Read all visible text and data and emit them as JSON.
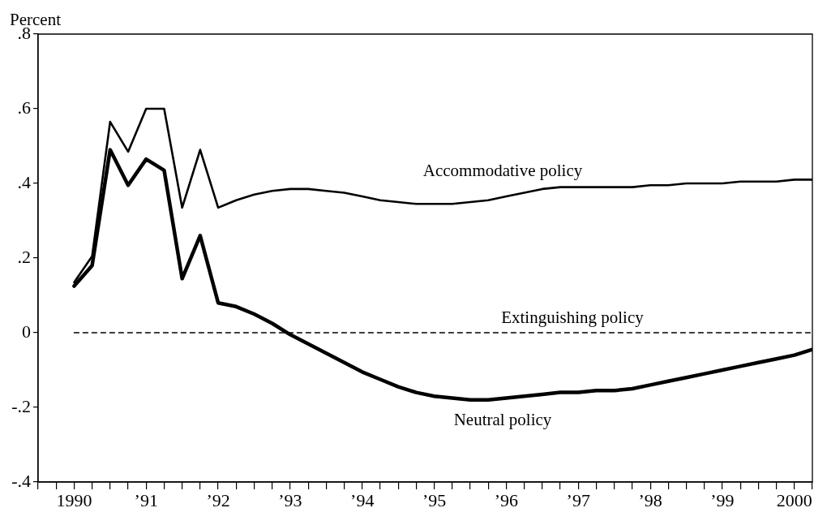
{
  "chart_data": {
    "type": "line",
    "ylabel": "Percent",
    "x": [
      1990,
      1990.25,
      1990.5,
      1990.75,
      1991,
      1991.25,
      1991.5,
      1991.75,
      1992,
      1992.25,
      1992.5,
      1992.75,
      1993,
      1993.25,
      1993.5,
      1993.75,
      1994,
      1994.25,
      1994.5,
      1994.75,
      1995,
      1995.25,
      1995.5,
      1995.75,
      1996,
      1996.25,
      1996.5,
      1996.75,
      1997,
      1997.25,
      1997.5,
      1997.75,
      1998,
      1998.25,
      1998.5,
      1998.75,
      1999,
      1999.25,
      1999.5,
      1999.75,
      2000,
      2000.25
    ],
    "series": [
      {
        "name": "Accommodative policy",
        "color": "#000000",
        "values": [
          0.135,
          0.205,
          0.565,
          0.485,
          0.6,
          0.6,
          0.335,
          0.49,
          0.335,
          0.355,
          0.37,
          0.38,
          0.385,
          0.385,
          0.38,
          0.375,
          0.365,
          0.355,
          0.35,
          0.345,
          0.345,
          0.345,
          0.35,
          0.355,
          0.365,
          0.375,
          0.385,
          0.39,
          0.39,
          0.39,
          0.39,
          0.39,
          0.395,
          0.395,
          0.4,
          0.4,
          0.4,
          0.405,
          0.405,
          0.405,
          0.41,
          0.41
        ]
      },
      {
        "name": "Extinguishing policy",
        "color": "#000000",
        "line_style": "dashed",
        "x": [
          1990,
          2000.25
        ],
        "values": [
          0,
          0
        ]
      },
      {
        "name": "Neutral policy",
        "color": "#000000",
        "values": [
          0.125,
          0.18,
          0.49,
          0.395,
          0.465,
          0.435,
          0.145,
          0.26,
          0.08,
          0.07,
          0.05,
          0.025,
          -0.005,
          -0.03,
          -0.055,
          -0.08,
          -0.105,
          -0.125,
          -0.145,
          -0.16,
          -0.17,
          -0.175,
          -0.18,
          -0.18,
          -0.175,
          -0.17,
          -0.165,
          -0.16,
          -0.16,
          -0.155,
          -0.155,
          -0.15,
          -0.14,
          -0.13,
          -0.12,
          -0.11,
          -0.1,
          -0.09,
          -0.08,
          -0.07,
          -0.06,
          -0.045
        ]
      }
    ],
    "xlim": [
      1989.5,
      2000.25
    ],
    "xticks": [
      {
        "value": 1989.5,
        "label": null
      },
      {
        "value": 1989.75,
        "label": null
      },
      {
        "value": 1990,
        "label": "1990"
      },
      {
        "value": 1990.25,
        "label": null
      },
      {
        "value": 1990.5,
        "label": null
      },
      {
        "value": 1990.75,
        "label": null
      },
      {
        "value": 1991,
        "label": "’91"
      },
      {
        "value": 1991.25,
        "label": null
      },
      {
        "value": 1991.5,
        "label": null
      },
      {
        "value": 1991.75,
        "label": null
      },
      {
        "value": 1992,
        "label": "’92"
      },
      {
        "value": 1992.25,
        "label": null
      },
      {
        "value": 1992.5,
        "label": null
      },
      {
        "value": 1992.75,
        "label": null
      },
      {
        "value": 1993,
        "label": "’93"
      },
      {
        "value": 1993.25,
        "label": null
      },
      {
        "value": 1993.5,
        "label": null
      },
      {
        "value": 1993.75,
        "label": null
      },
      {
        "value": 1994,
        "label": "’94"
      },
      {
        "value": 1994.25,
        "label": null
      },
      {
        "value": 1994.5,
        "label": null
      },
      {
        "value": 1994.75,
        "label": null
      },
      {
        "value": 1995,
        "label": "’95"
      },
      {
        "value": 1995.25,
        "label": null
      },
      {
        "value": 1995.5,
        "label": null
      },
      {
        "value": 1995.75,
        "label": null
      },
      {
        "value": 1996,
        "label": "’96"
      },
      {
        "value": 1996.25,
        "label": null
      },
      {
        "value": 1996.5,
        "label": null
      },
      {
        "value": 1996.75,
        "label": null
      },
      {
        "value": 1997,
        "label": "’97"
      },
      {
        "value": 1997.25,
        "label": null
      },
      {
        "value": 1997.5,
        "label": null
      },
      {
        "value": 1997.75,
        "label": null
      },
      {
        "value": 1998,
        "label": "’98"
      },
      {
        "value": 1998.25,
        "label": null
      },
      {
        "value": 1998.5,
        "label": null
      },
      {
        "value": 1998.75,
        "label": null
      },
      {
        "value": 1999,
        "label": "’99"
      },
      {
        "value": 1999.25,
        "label": null
      },
      {
        "value": 1999.5,
        "label": null
      },
      {
        "value": 1999.75,
        "label": null
      },
      {
        "value": 2000,
        "label": "2000"
      },
      {
        "value": 2000.25,
        "label": null
      }
    ],
    "ylim": [
      -0.4,
      0.8
    ],
    "yticks": [
      {
        "value": 0.8,
        "label": ".8"
      },
      {
        "value": 0.6,
        "label": ".6"
      },
      {
        "value": 0.4,
        "label": ".4"
      },
      {
        "value": 0.2,
        "label": ".2"
      },
      {
        "value": 0,
        "label": "0"
      },
      {
        "value": -0.2,
        "label": "-.2"
      },
      {
        "value": -0.4,
        "label": "-.4"
      }
    ],
    "grid": false,
    "legend": false
  }
}
